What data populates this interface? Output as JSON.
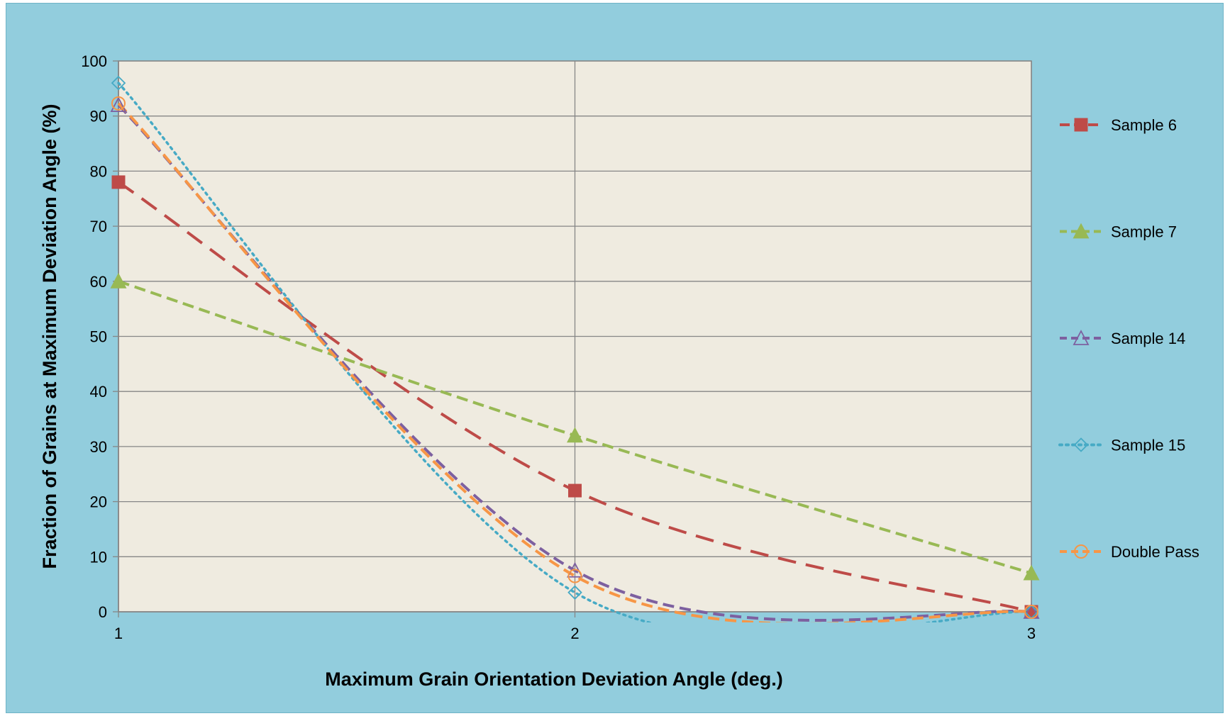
{
  "chart_data": {
    "type": "line",
    "title": "",
    "xlabel": "Maximum Grain Orientation Deviation Angle (deg.)",
    "ylabel": "Fraction of Grains at Maximum Deviation Angle (%)",
    "x": [
      1,
      2,
      3
    ],
    "xlim": [
      1,
      3
    ],
    "ylim": [
      0,
      100
    ],
    "x_ticks": [
      "1",
      "2",
      "3"
    ],
    "y_ticks": [
      "0",
      "10",
      "20",
      "30",
      "40",
      "50",
      "60",
      "70",
      "80",
      "90",
      "100"
    ],
    "grid": true,
    "smoothed": true,
    "legend_position": "right",
    "plot_background": "#efebe0",
    "chart_background": "#92cddd",
    "series": [
      {
        "name": "Sample 6",
        "values": [
          78,
          22,
          0
        ],
        "color": "#be4b48",
        "marker": "square",
        "dash": "long-dash"
      },
      {
        "name": "Sample 7",
        "values": [
          60,
          32,
          7
        ],
        "color": "#98b954",
        "marker": "triangle",
        "dash": "dash"
      },
      {
        "name": "Sample 14",
        "values": [
          92,
          7.5,
          0
        ],
        "color": "#7d60a0",
        "marker": "triangle-open",
        "dash": "dash"
      },
      {
        "name": "Sample 15",
        "values": [
          96,
          3.5,
          0
        ],
        "color": "#46aac5",
        "marker": "diamond-open",
        "dash": "dot"
      },
      {
        "name": "Double Pass",
        "values": [
          92.3,
          6.5,
          0
        ],
        "color": "#f79646",
        "marker": "circle-open",
        "dash": "dash"
      }
    ]
  }
}
